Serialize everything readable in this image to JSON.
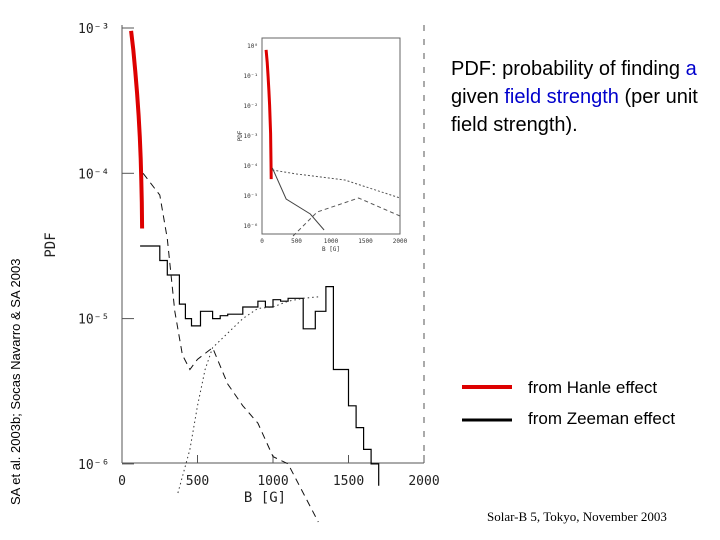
{
  "side_credit": "SA et al. 2003b; Socas Navarro & SA 2003",
  "description": {
    "part1": "PDF: probability of finding ",
    "a": "a",
    "mid1": " given ",
    "field": "field",
    "strength": "strength",
    "rest": " (per unit field strength)."
  },
  "legend": {
    "hanle_label": "from Hanle effect",
    "zeeman_label": "from Zeeman effect",
    "hanle_color": "#dd0000",
    "zeeman_color": "#000000"
  },
  "footer": "Solar-B 5, Tokyo, November 2003",
  "chart_data": {
    "type": "line",
    "ylabel": "PDF",
    "xlabel": "B [G]",
    "xlim": [
      0,
      2000
    ],
    "ylog_range": [
      -6,
      -3
    ],
    "x_ticks": [
      0,
      500,
      1000,
      1500,
      2000
    ],
    "y_ticks": [
      {
        "exp": -3,
        "label": "10⁻³"
      },
      {
        "exp": -4,
        "label": "10⁻⁴"
      },
      {
        "exp": -5,
        "label": "10⁻⁵"
      },
      {
        "exp": -6,
        "label": "10⁻⁶"
      }
    ],
    "series": [
      {
        "name": "from Hanle effect",
        "style": "thick red",
        "x": [
          60,
          75,
          88,
          100,
          110,
          118,
          124,
          128,
          131,
          133
        ],
        "logy": [
          -3.02,
          -3.15,
          -3.3,
          -3.45,
          -3.6,
          -3.75,
          -3.9,
          -4.05,
          -4.2,
          -4.38
        ]
      },
      {
        "name": "from Zeeman effect",
        "style": "solid histogram",
        "x": [
          120,
          250,
          250,
          300,
          300,
          380,
          380,
          420,
          420,
          460,
          460,
          520,
          520,
          600,
          600,
          650,
          650,
          700,
          700,
          800,
          800,
          850,
          850,
          900,
          900,
          950,
          950,
          1000,
          1000,
          1050,
          1050,
          1100,
          1100,
          1200,
          1200,
          1280,
          1280,
          1350,
          1350,
          1400,
          1400,
          1500,
          1500,
          1550,
          1550,
          1600,
          1600,
          1650,
          1650,
          1700,
          1700
        ],
        "logy": [
          -4.5,
          -4.5,
          -4.6,
          -4.6,
          -4.7,
          -4.7,
          -4.9,
          -4.9,
          -5.0,
          -5.0,
          -5.05,
          -5.05,
          -4.95,
          -4.95,
          -5.0,
          -5.0,
          -4.98,
          -4.98,
          -4.97,
          -4.97,
          -4.92,
          -4.92,
          -4.92,
          -4.92,
          -4.88,
          -4.88,
          -4.92,
          -4.92,
          -4.87,
          -4.87,
          -4.88,
          -4.88,
          -4.86,
          -4.86,
          -5.07,
          -5.07,
          -4.95,
          -4.95,
          -4.78,
          -4.78,
          -5.35,
          -5.35,
          -5.6,
          -5.6,
          -5.75,
          -5.75,
          -5.9,
          -5.9,
          -6.0,
          -6.0,
          -6.15
        ]
      },
      {
        "name": "Zeeman dashed",
        "style": "dashed histogram",
        "x": [
          140,
          250,
          300,
          350,
          400,
          450,
          500,
          600,
          700,
          800,
          900,
          1000,
          1100,
          1200,
          1300
        ],
        "logy": [
          -4.0,
          -4.15,
          -4.45,
          -4.95,
          -5.25,
          -5.35,
          -5.28,
          -5.2,
          -5.45,
          -5.6,
          -5.72,
          -5.95,
          -6.0,
          -6.2,
          -6.4
        ]
      },
      {
        "name": "Zeeman dotted",
        "style": "dotted",
        "x": [
          370,
          450,
          500,
          550,
          600,
          700,
          800,
          900,
          1000,
          1100,
          1200,
          1300
        ],
        "logy": [
          -6.2,
          -5.9,
          -5.6,
          -5.35,
          -5.2,
          -5.1,
          -5.0,
          -4.93,
          -4.92,
          -4.88,
          -4.86,
          -4.85
        ]
      }
    ],
    "inset": {
      "ylabel": "PDF",
      "xlabel": "B [G]",
      "x_ticks": [
        0,
        500,
        1000,
        1500,
        2000
      ],
      "y_ticks": [
        "10⁰",
        "10⁻¹",
        "10⁻²",
        "10⁻³",
        "10⁻⁴",
        "10⁻⁵",
        "10⁻⁶"
      ]
    }
  }
}
